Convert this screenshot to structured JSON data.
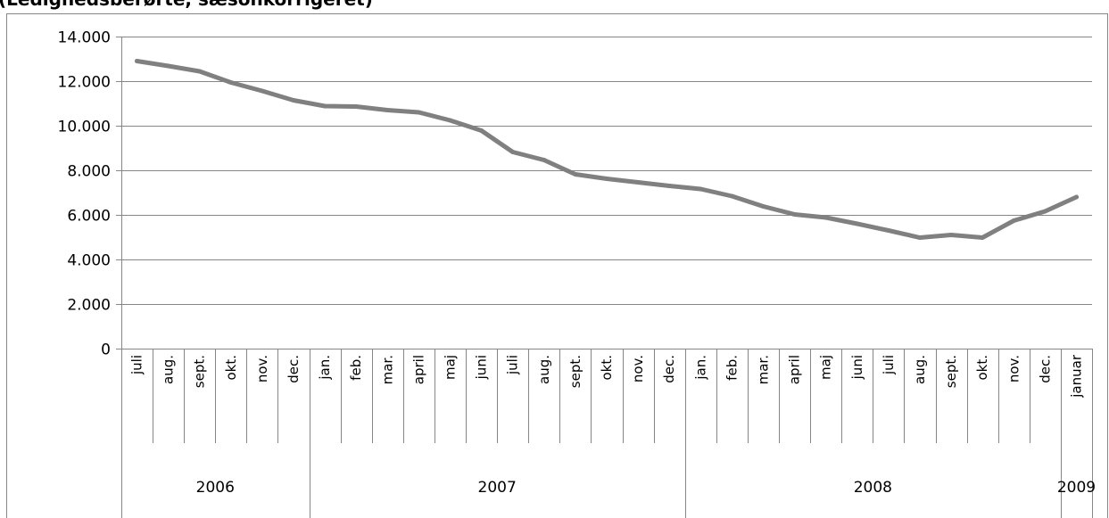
{
  "chart_data": {
    "type": "line",
    "title": "(Ledighedsberørte, sæsonkorrigeret)",
    "xlabel": "",
    "ylabel": "",
    "ylim": [
      0,
      14000
    ],
    "yticks": [
      "0",
      "2.000",
      "4.000",
      "6.000",
      "8.000",
      "10.000",
      "12.000",
      "14.000"
    ],
    "grid": true,
    "legend": "none",
    "line_color": "#808080",
    "grid_color": "#868686",
    "categories": [
      "juli",
      "aug.",
      "sept.",
      "okt.",
      "nov.",
      "dec.",
      "jan.",
      "feb.",
      "mar.",
      "april",
      "maj",
      "juni",
      "juli",
      "aug.",
      "sept.",
      "okt.",
      "nov.",
      "dec.",
      "jan.",
      "feb.",
      "mar.",
      "april",
      "maj",
      "juni",
      "juli",
      "aug.",
      "sept.",
      "okt.",
      "nov.",
      "dec.",
      "januar"
    ],
    "years": [
      {
        "label": "2006",
        "count": 6
      },
      {
        "label": "2007",
        "count": 12
      },
      {
        "label": "2008",
        "count": 12
      },
      {
        "label": "2009",
        "count": 1
      }
    ],
    "series": [
      {
        "values": [
          12900,
          12680,
          12440,
          11940,
          11560,
          11140,
          10880,
          10860,
          10700,
          10600,
          10240,
          9780,
          8820,
          8460,
          7820,
          7620,
          7460,
          7300,
          7160,
          6840,
          6380,
          6020,
          5880,
          5600,
          5300,
          4980,
          5100,
          4980,
          5740,
          6160,
          6800
        ]
      }
    ]
  }
}
